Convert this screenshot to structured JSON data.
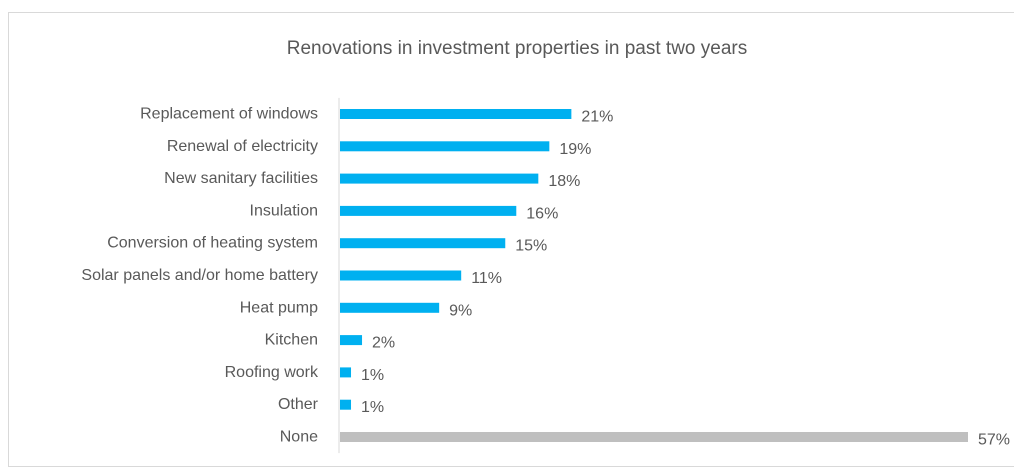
{
  "chart_data": {
    "type": "bar",
    "orientation": "horizontal",
    "title": "Renovations in investment properties in past two years",
    "categories": [
      "Replacement of windows",
      "Renewal of electricity",
      "New sanitary facilities",
      "Insulation",
      "Conversion of heating system",
      "Solar panels and/or home battery",
      "Heat pump",
      "Kitchen",
      "Roofing work",
      "Other",
      "None"
    ],
    "values": [
      21,
      19,
      18,
      16,
      15,
      11,
      9,
      2,
      1,
      1,
      57
    ],
    "value_labels": [
      "21%",
      "19%",
      "18%",
      "16%",
      "15%",
      "11%",
      "9%",
      "2%",
      "1%",
      "1%",
      "57%"
    ],
    "unit": "%",
    "xlabel": "",
    "ylabel": "",
    "grid": false,
    "legend": "none",
    "colors": {
      "default_bar": "#00b0f0",
      "highlight_bar": "#bfbfbf",
      "label": "#595959",
      "axis": "#d9d9d9"
    },
    "highlight_categories": [
      "None"
    ]
  }
}
